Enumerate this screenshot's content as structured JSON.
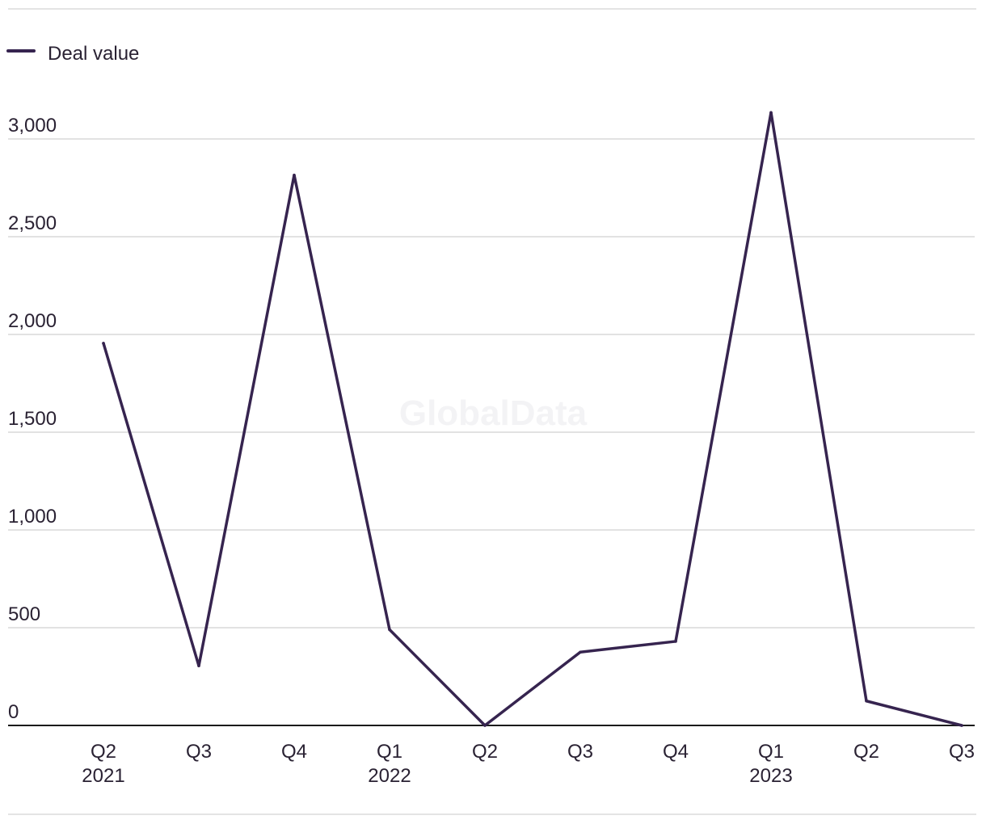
{
  "watermark": "GlobalData",
  "chart_data": {
    "type": "line",
    "title": "",
    "xlabel": "",
    "ylabel": "",
    "legend": {
      "placement": "top-left",
      "entries": [
        "Deal value"
      ]
    },
    "grid": true,
    "ylim": [
      0,
      3000
    ],
    "y_ticks": [
      "0",
      "500",
      "1,000",
      "1,500",
      "2,000",
      "2,500",
      "3,000"
    ],
    "y_tick_values": [
      0,
      500,
      1000,
      1500,
      2000,
      2500,
      3000
    ],
    "categories": [
      {
        "quarter": "Q2",
        "year": "2021"
      },
      {
        "quarter": "Q3",
        "year": ""
      },
      {
        "quarter": "Q4",
        "year": ""
      },
      {
        "quarter": "Q1",
        "year": "2022"
      },
      {
        "quarter": "Q2",
        "year": ""
      },
      {
        "quarter": "Q3",
        "year": ""
      },
      {
        "quarter": "Q4",
        "year": ""
      },
      {
        "quarter": "Q1",
        "year": "2023"
      },
      {
        "quarter": "Q2",
        "year": ""
      },
      {
        "quarter": "Q3",
        "year": ""
      }
    ],
    "series": [
      {
        "name": "Deal value",
        "color": "#36244f",
        "values": [
          1955,
          305,
          2815,
          490,
          0,
          375,
          430,
          3135,
          125,
          0
        ]
      }
    ]
  }
}
